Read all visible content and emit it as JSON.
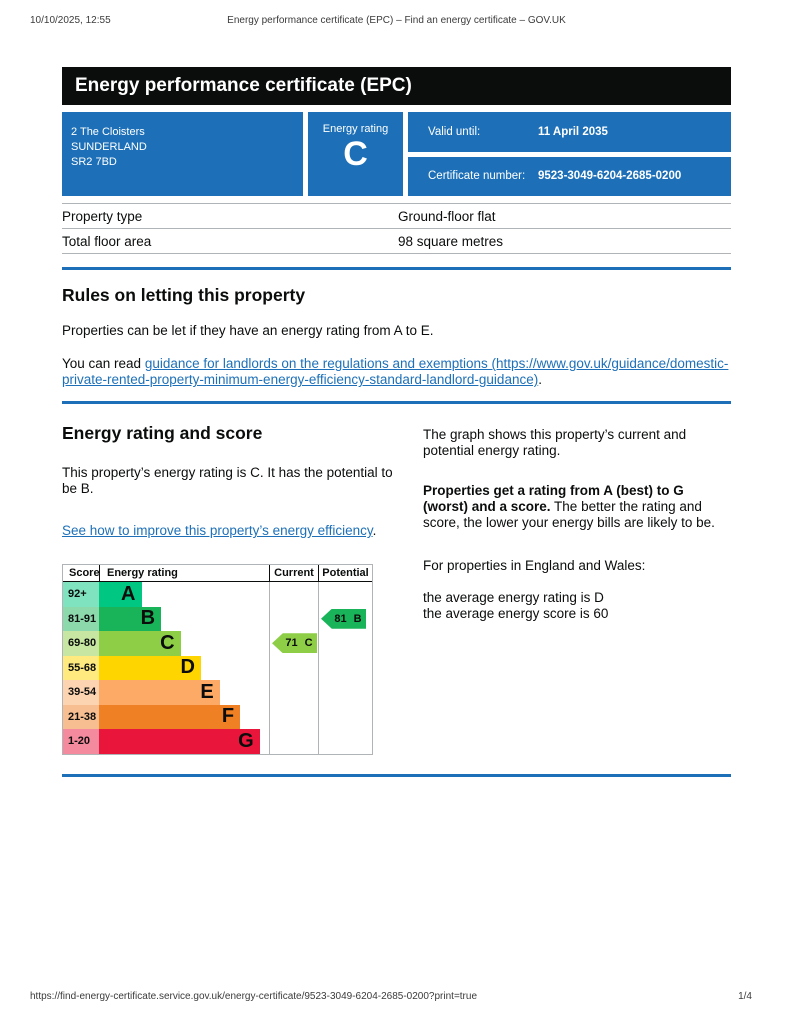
{
  "print_header": {
    "datetime": "10/10/2025, 12:55",
    "title": "Energy performance certificate (EPC) – Find an energy certificate – GOV.UK"
  },
  "banner": {
    "title": "Energy performance certificate (EPC)"
  },
  "summary": {
    "address_lines": [
      "2 The Cloisters",
      "SUNDERLAND",
      "SR2 7BD"
    ],
    "energy_rating_label": "Energy rating",
    "energy_rating": "C",
    "valid_until_label": "Valid until:",
    "valid_until": "11 April 2035",
    "certificate_number_label": "Certificate number:",
    "certificate_number": "9523-3049-6204-2685-0200"
  },
  "property_table": {
    "rows": [
      {
        "label": "Property type",
        "value": "Ground-floor flat"
      },
      {
        "label": "Total floor area",
        "value": "98 square metres"
      }
    ]
  },
  "rules_section": {
    "heading": "Rules on letting this property",
    "paragraph1": "Properties can be let if they have an energy rating from A to E.",
    "paragraph2_prefix": "You can read ",
    "paragraph2_link": "guidance for landlords on the regulations and exemptions (https://www.gov.uk/guidance/domestic-private-rented-property-minimum-energy-efficiency-standard-landlord-guidance)",
    "paragraph2_suffix": "."
  },
  "rating_section": {
    "heading": "Energy rating and score",
    "paragraph1": "This property’s energy rating is C. It has the potential to be B.",
    "link": "See how to improve this property’s energy efficiency",
    "link_suffix": ".",
    "right_paragraph1": "The graph shows this property’s current and potential energy rating.",
    "right_paragraph2_bold": "Properties get a rating from A (best) to G (worst) and a score.",
    "right_paragraph2_rest": " The better the rating and score, the lower your energy bills are likely to be.",
    "right_paragraph3": "For properties in England and Wales:",
    "right_line1": "the average energy rating is D",
    "right_line2": "the average energy score is 60"
  },
  "chart_data": {
    "type": "bar",
    "title": "Energy rating and score graph",
    "headers": {
      "score": "Score",
      "energy_rating": "Energy rating",
      "current": "Current",
      "potential": "Potential"
    },
    "categories": [
      "A",
      "B",
      "C",
      "D",
      "E",
      "F",
      "G"
    ],
    "score_ranges": [
      "92+",
      "81-91",
      "69-80",
      "55-68",
      "39-54",
      "21-38",
      "1-20"
    ],
    "bands": [
      {
        "score_range": "92+",
        "letter": "A",
        "color": "#00c781",
        "width_pct": 25
      },
      {
        "score_range": "81-91",
        "letter": "B",
        "color": "#19b459",
        "width_pct": 36.5
      },
      {
        "score_range": "69-80",
        "letter": "C",
        "color": "#8dce46",
        "width_pct": 48
      },
      {
        "score_range": "55-68",
        "letter": "D",
        "color": "#ffd500",
        "width_pct": 60
      },
      {
        "score_range": "39-54",
        "letter": "E",
        "color": "#fcaa65",
        "width_pct": 71
      },
      {
        "score_range": "21-38",
        "letter": "F",
        "color": "#ef8023",
        "width_pct": 83
      },
      {
        "score_range": "1-20",
        "letter": "G",
        "color": "#e9153b",
        "width_pct": 94.5
      }
    ],
    "current": {
      "score": 71,
      "letter": "C",
      "label": "71 C",
      "band_index": 2,
      "color": "#8dce46"
    },
    "potential": {
      "score": 81,
      "letter": "B",
      "label": "81 B",
      "band_index": 1,
      "color": "#19b459"
    },
    "layout": {
      "legend": "off",
      "grid": "column-separators-only"
    }
  },
  "footer": {
    "url": "https://find-energy-certificate.service.gov.uk/energy-certificate/9523-3049-6204-2685-0200?print=true",
    "page": "1/4"
  },
  "colors": {
    "govuk_blue": "#1d70b8",
    "banner_bg": "#0b0c0c",
    "link": "#1d70b8",
    "border_gray": "#b1b4b6"
  }
}
